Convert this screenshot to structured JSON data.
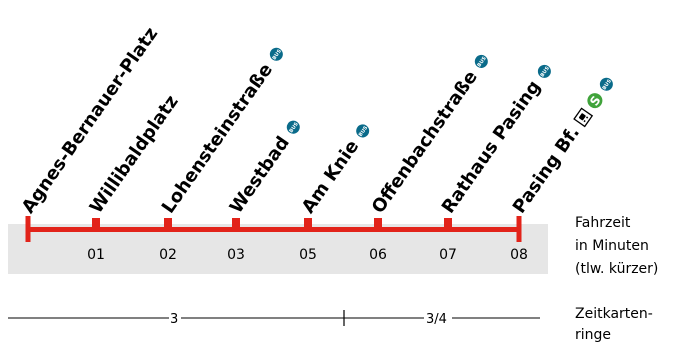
{
  "line_color": "#e2231a",
  "band_color": "#e6e6e6",
  "bus_color": "#0a6b8a",
  "sbahn_color": "#40a33b",
  "stops": [
    {
      "name": "Agnes-Bernauer-Platz",
      "minutes": "",
      "bus": false,
      "terminal": true
    },
    {
      "name": "Willibaldplatz",
      "minutes": "01",
      "bus": false,
      "terminal": false
    },
    {
      "name": "Lohensteinstraße",
      "minutes": "02",
      "bus": true,
      "terminal": false
    },
    {
      "name": "Westbad",
      "minutes": "03",
      "bus": true,
      "terminal": false
    },
    {
      "name": "Am Knie",
      "minutes": "05",
      "bus": true,
      "terminal": false
    },
    {
      "name": "Offenbachstraße",
      "minutes": "06",
      "bus": true,
      "terminal": false
    },
    {
      "name": "Rathaus Pasing",
      "minutes": "07",
      "bus": true,
      "terminal": false
    },
    {
      "name": "Pasing Bf.",
      "minutes": "08",
      "bus": true,
      "terminal": true,
      "sbahn": true,
      "train": true
    }
  ],
  "bus_badge": "BUS",
  "sbahn_badge": "S",
  "travel_time_label": [
    "Fahrzeit",
    "in Minuten",
    "(tlw. kürzer)"
  ],
  "zones_label": [
    "Zeitkarten-",
    "ringe"
  ],
  "zones": [
    "3",
    "3/4"
  ]
}
